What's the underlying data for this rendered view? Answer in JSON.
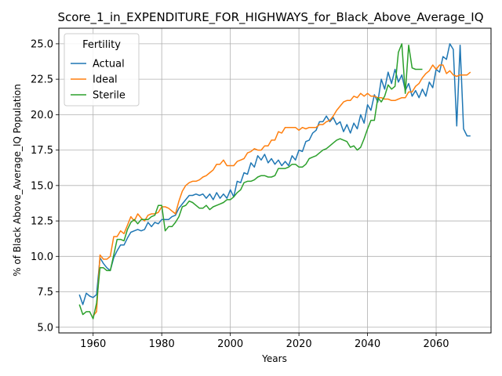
{
  "chart_data": {
    "type": "line",
    "title": "Score_1_in_EXPENDITURE_FOR_HIGHWAYS_for_Black_Above_Average_IQ",
    "xlabel": "Years",
    "ylabel": "% of Black Above_Average_IQ Population",
    "xlim": [
      1950,
      2076
    ],
    "ylim": [
      4.6,
      26.1
    ],
    "xticks": [
      1960,
      1980,
      2000,
      2020,
      2040,
      2060
    ],
    "yticks": [
      5.0,
      7.5,
      10.0,
      12.5,
      15.0,
      17.5,
      20.0,
      22.5,
      25.0
    ],
    "grid": true,
    "legend": {
      "title": "Fertility",
      "position": "top-left"
    },
    "series": [
      {
        "name": "Actual",
        "color": "#1f77b4",
        "x": [
          1956,
          1957,
          1958,
          1959,
          1960,
          1961,
          1962,
          1963,
          1964,
          1965,
          1966,
          1967,
          1968,
          1969,
          1970,
          1971,
          1972,
          1973,
          1974,
          1975,
          1976,
          1977,
          1978,
          1979,
          1980,
          1981,
          1982,
          1983,
          1984,
          1985,
          1986,
          1987,
          1988,
          1989,
          1990,
          1991,
          1992,
          1993,
          1994,
          1995,
          1996,
          1997,
          1998,
          1999,
          2000,
          2001,
          2002,
          2003,
          2004,
          2005,
          2006,
          2007,
          2008,
          2009,
          2010,
          2011,
          2012,
          2013,
          2014,
          2015,
          2016,
          2017,
          2018,
          2019,
          2020,
          2021,
          2022,
          2023,
          2024,
          2025,
          2026,
          2027,
          2028,
          2029,
          2030,
          2031,
          2032,
          2033,
          2034,
          2035,
          2036,
          2037,
          2038,
          2039,
          2040,
          2041,
          2042,
          2043,
          2044,
          2045,
          2046,
          2047,
          2048,
          2049,
          2050,
          2051,
          2052,
          2053,
          2054,
          2055,
          2056,
          2057,
          2058,
          2059,
          2060,
          2061,
          2062,
          2063,
          2064,
          2065,
          2066,
          2067,
          2068,
          2069,
          2070
        ],
        "y": [
          7.3,
          6.6,
          7.4,
          7.2,
          7.1,
          7.3,
          9.9,
          9.5,
          9.2,
          9.0,
          9.9,
          10.4,
          10.8,
          10.8,
          11.3,
          11.7,
          11.8,
          11.9,
          11.8,
          11.9,
          12.4,
          12.1,
          12.4,
          12.3,
          12.6,
          12.6,
          12.6,
          12.8,
          12.9,
          13.4,
          13.7,
          14.0,
          14.3,
          14.3,
          14.4,
          14.3,
          14.4,
          14.1,
          14.4,
          14.0,
          14.5,
          14.1,
          14.4,
          14.1,
          14.7,
          14.2,
          15.3,
          15.2,
          15.9,
          15.8,
          16.6,
          16.3,
          17.1,
          16.8,
          17.2,
          16.6,
          16.9,
          16.5,
          16.8,
          16.4,
          16.7,
          16.4,
          17.1,
          16.8,
          17.5,
          17.4,
          18.1,
          18.2,
          18.7,
          18.9,
          19.5,
          19.5,
          19.9,
          19.5,
          19.8,
          19.3,
          19.5,
          18.8,
          19.3,
          18.7,
          19.4,
          19.0,
          20.0,
          19.4,
          20.7,
          20.3,
          21.4,
          20.9,
          22.5,
          21.8,
          23.0,
          22.2,
          23.2,
          22.3,
          22.8,
          21.7,
          22.2,
          21.3,
          21.7,
          21.2,
          21.8,
          21.3,
          22.3,
          21.9,
          23.2,
          23.0,
          24.1,
          23.9,
          25.0,
          24.6,
          19.2,
          24.9,
          19.0,
          18.5,
          18.5
        ]
      },
      {
        "name": "Ideal",
        "color": "#ff7f0e",
        "x": [
          1960,
          1961,
          1962,
          1963,
          1964,
          1965,
          1966,
          1967,
          1968,
          1969,
          1970,
          1971,
          1972,
          1973,
          1974,
          1975,
          1976,
          1977,
          1978,
          1979,
          1980,
          1981,
          1982,
          1983,
          1984,
          1985,
          1986,
          1987,
          1988,
          1989,
          1990,
          1991,
          1992,
          1993,
          1994,
          1995,
          1996,
          1997,
          1998,
          1999,
          2000,
          2001,
          2002,
          2003,
          2004,
          2005,
          2006,
          2007,
          2008,
          2009,
          2010,
          2011,
          2012,
          2013,
          2014,
          2015,
          2016,
          2017,
          2018,
          2019,
          2020,
          2021,
          2022,
          2023,
          2024,
          2025,
          2026,
          2027,
          2028,
          2029,
          2030,
          2031,
          2032,
          2033,
          2034,
          2035,
          2036,
          2037,
          2038,
          2039,
          2040,
          2041,
          2042,
          2043,
          2044,
          2045,
          2046,
          2047,
          2048,
          2049,
          2050,
          2051,
          2052,
          2053,
          2054,
          2055,
          2056,
          2057,
          2058,
          2059,
          2060,
          2061,
          2062,
          2063,
          2064,
          2065,
          2066,
          2067,
          2068,
          2069,
          2070
        ],
        "y": [
          5.8,
          6.1,
          10.1,
          9.8,
          9.8,
          10.0,
          11.4,
          11.4,
          11.8,
          11.6,
          12.2,
          12.8,
          12.5,
          13.0,
          12.7,
          12.5,
          12.9,
          13.0,
          13.0,
          13.1,
          13.5,
          13.5,
          13.4,
          13.2,
          13.0,
          13.9,
          14.6,
          15.0,
          15.2,
          15.3,
          15.3,
          15.4,
          15.6,
          15.7,
          15.9,
          16.1,
          16.5,
          16.5,
          16.8,
          16.4,
          16.4,
          16.4,
          16.7,
          16.8,
          16.9,
          17.3,
          17.4,
          17.6,
          17.5,
          17.5,
          17.8,
          17.8,
          18.2,
          18.2,
          18.8,
          18.7,
          19.1,
          19.1,
          19.1,
          19.1,
          18.9,
          19.1,
          19.0,
          19.1,
          19.1,
          19.1,
          19.3,
          19.3,
          19.5,
          19.6,
          19.9,
          20.3,
          20.6,
          20.9,
          21.0,
          21.0,
          21.3,
          21.2,
          21.5,
          21.3,
          21.5,
          21.3,
          21.3,
          21.2,
          21.2,
          21.1,
          21.1,
          21.0,
          21.0,
          21.1,
          21.2,
          21.2,
          21.6,
          21.6,
          22.0,
          22.2,
          22.6,
          22.9,
          23.1,
          23.5,
          23.2,
          23.5,
          23.5,
          22.9,
          23.1,
          22.8,
          22.7,
          22.8,
          22.8,
          22.8,
          23.0
        ]
      },
      {
        "name": "Sterile",
        "color": "#2ca02c",
        "x": [
          1956,
          1957,
          1958,
          1959,
          1960,
          1961,
          1962,
          1963,
          1964,
          1965,
          1966,
          1967,
          1968,
          1969,
          1970,
          1971,
          1972,
          1973,
          1974,
          1975,
          1976,
          1977,
          1978,
          1979,
          1980,
          1981,
          1982,
          1983,
          1984,
          1985,
          1986,
          1987,
          1988,
          1989,
          1990,
          1991,
          1992,
          1993,
          1994,
          1995,
          1996,
          1997,
          1998,
          1999,
          2000,
          2001,
          2002,
          2003,
          2004,
          2005,
          2006,
          2007,
          2008,
          2009,
          2010,
          2011,
          2012,
          2013,
          2014,
          2015,
          2016,
          2017,
          2018,
          2019,
          2020,
          2021,
          2022,
          2023,
          2024,
          2025,
          2026,
          2027,
          2028,
          2029,
          2030,
          2031,
          2032,
          2033,
          2034,
          2035,
          2036,
          2037,
          2038,
          2039,
          2040,
          2041,
          2042,
          2043,
          2044,
          2045,
          2046,
          2047,
          2048,
          2049,
          2050,
          2051,
          2052,
          2053,
          2054,
          2055,
          2056
        ],
        "y": [
          6.6,
          5.9,
          6.1,
          6.1,
          5.6,
          6.7,
          9.2,
          9.2,
          9.0,
          9.0,
          10.1,
          11.2,
          11.2,
          11.1,
          11.9,
          12.4,
          12.6,
          12.3,
          12.6,
          12.6,
          12.6,
          12.8,
          12.9,
          13.6,
          13.6,
          11.8,
          12.1,
          12.1,
          12.4,
          12.8,
          13.5,
          13.6,
          13.9,
          13.8,
          13.6,
          13.4,
          13.4,
          13.6,
          13.3,
          13.5,
          13.6,
          13.7,
          13.8,
          14.0,
          14.0,
          14.2,
          14.5,
          14.7,
          15.2,
          15.3,
          15.3,
          15.4,
          15.6,
          15.7,
          15.7,
          15.6,
          15.6,
          15.7,
          16.2,
          16.2,
          16.2,
          16.3,
          16.5,
          16.5,
          16.3,
          16.3,
          16.5,
          16.9,
          17.0,
          17.1,
          17.3,
          17.5,
          17.6,
          17.8,
          18.0,
          18.2,
          18.3,
          18.2,
          18.1,
          17.7,
          17.8,
          17.5,
          17.7,
          18.3,
          19.0,
          19.6,
          19.6,
          21.2,
          20.9,
          21.3,
          22.1,
          21.8,
          22.0,
          24.4,
          25.0,
          21.5,
          24.9,
          23.3,
          23.2,
          23.2,
          23.2
        ]
      }
    ]
  }
}
